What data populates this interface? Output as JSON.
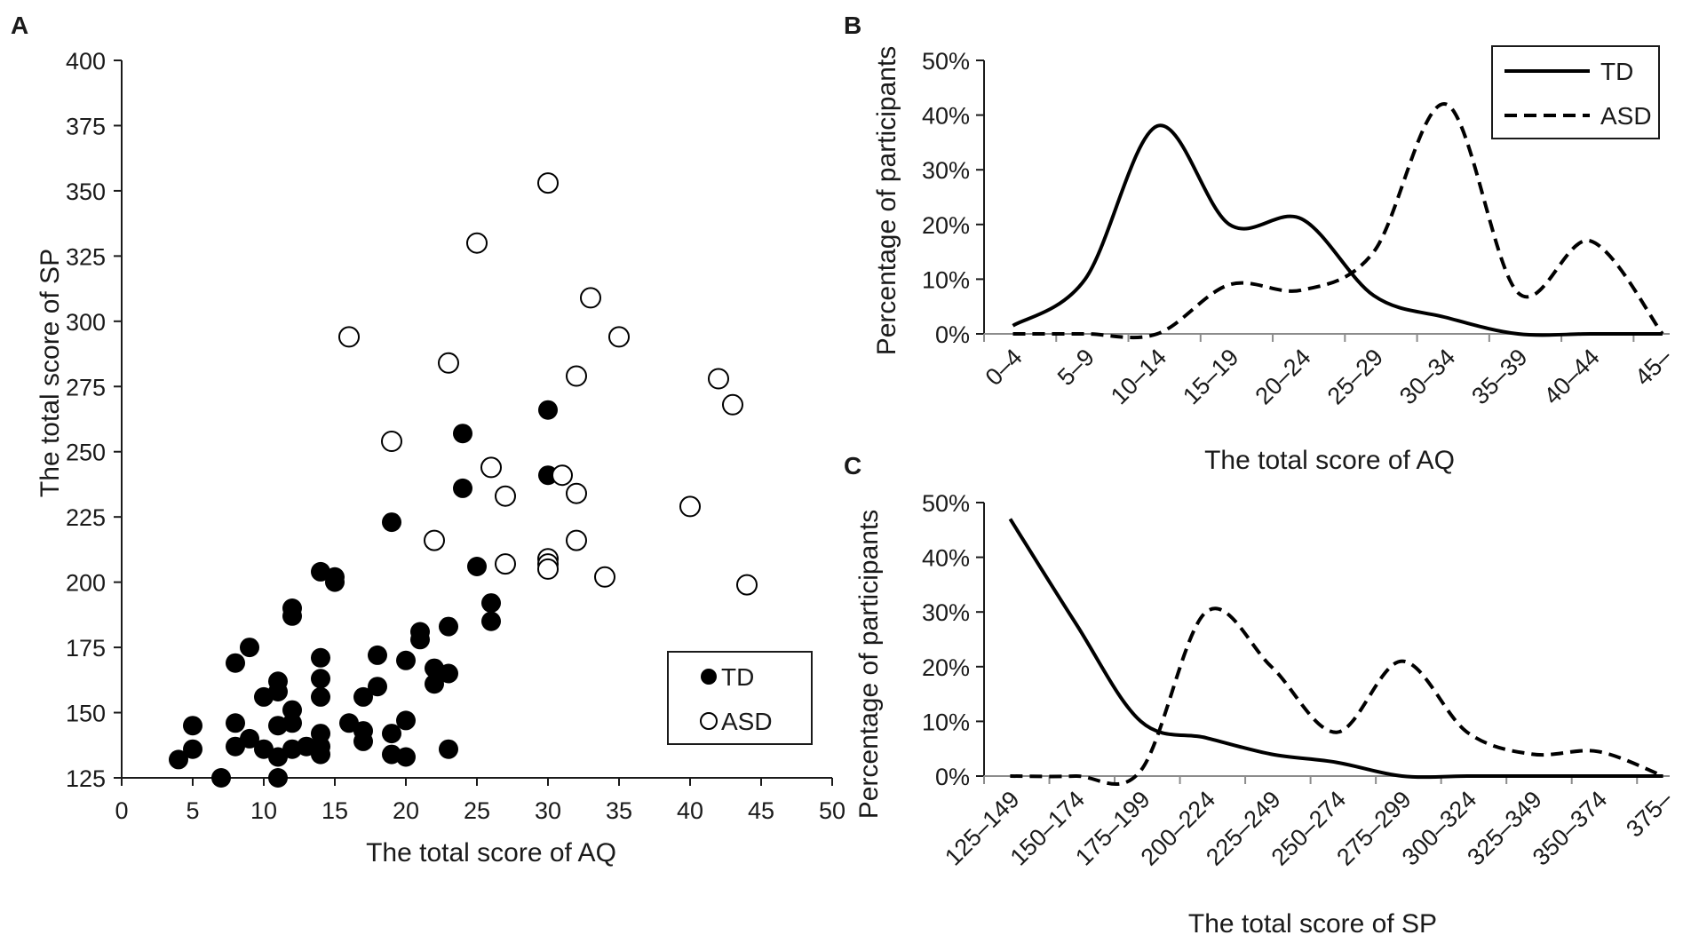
{
  "chart_data": [
    {
      "panel": "A",
      "type": "scatter",
      "title": "",
      "xlabel": "The total score of AQ",
      "ylabel": "The total score of SP",
      "xlim": [
        0,
        50
      ],
      "ylim": [
        125,
        400
      ],
      "xticks": [
        "0",
        "5",
        "10",
        "15",
        "20",
        "25",
        "30",
        "35",
        "40",
        "45",
        "50"
      ],
      "yticks": [
        "125",
        "150",
        "175",
        "200",
        "225",
        "250",
        "275",
        "300",
        "325",
        "350",
        "375",
        "400"
      ],
      "legend": {
        "position": "bottom-right",
        "entries": [
          "TD",
          "ASD"
        ]
      },
      "series": [
        {
          "name": "TD",
          "marker": "filled-circle",
          "points": [
            [
              4,
              132
            ],
            [
              5,
              136
            ],
            [
              5,
              145
            ],
            [
              7,
              125
            ],
            [
              8,
              137
            ],
            [
              8,
              146
            ],
            [
              8,
              169
            ],
            [
              9,
              175
            ],
            [
              9,
              140
            ],
            [
              10,
              136
            ],
            [
              10,
              156
            ],
            [
              11,
              145
            ],
            [
              11,
              162
            ],
            [
              11,
              158
            ],
            [
              11,
              133
            ],
            [
              11,
              125
            ],
            [
              12,
              190
            ],
            [
              12,
              187
            ],
            [
              12,
              151
            ],
            [
              12,
              146
            ],
            [
              12,
              136
            ],
            [
              13,
              137
            ],
            [
              14,
              204
            ],
            [
              14,
              171
            ],
            [
              14,
              163
            ],
            [
              14,
              156
            ],
            [
              14,
              142
            ],
            [
              14,
              137
            ],
            [
              14,
              134
            ],
            [
              15,
              202
            ],
            [
              15,
              200
            ],
            [
              16,
              146
            ],
            [
              17,
              156
            ],
            [
              17,
              143
            ],
            [
              17,
              139
            ],
            [
              18,
              172
            ],
            [
              18,
              160
            ],
            [
              19,
              223
            ],
            [
              19,
              142
            ],
            [
              19,
              134
            ],
            [
              20,
              170
            ],
            [
              20,
              147
            ],
            [
              20,
              133
            ],
            [
              21,
              181
            ],
            [
              21,
              178
            ],
            [
              22,
              167
            ],
            [
              22,
              161
            ],
            [
              23,
              183
            ],
            [
              23,
              165
            ],
            [
              23,
              136
            ],
            [
              24,
              257
            ],
            [
              24,
              236
            ],
            [
              25,
              206
            ],
            [
              26,
              192
            ],
            [
              26,
              185
            ],
            [
              30,
              266
            ],
            [
              30,
              241
            ]
          ]
        },
        {
          "name": "ASD",
          "marker": "open-circle",
          "points": [
            [
              30,
              353
            ],
            [
              25,
              330
            ],
            [
              33,
              309
            ],
            [
              16,
              294
            ],
            [
              35,
              294
            ],
            [
              23,
              284
            ],
            [
              32,
              279
            ],
            [
              42,
              278
            ],
            [
              43,
              268
            ],
            [
              19,
              254
            ],
            [
              26,
              244
            ],
            [
              31,
              241
            ],
            [
              27,
              233
            ],
            [
              32,
              234
            ],
            [
              40,
              229
            ],
            [
              22,
              216
            ],
            [
              32,
              216
            ],
            [
              27,
              207
            ],
            [
              30,
              209
            ],
            [
              30,
              207
            ],
            [
              30,
              205
            ],
            [
              34,
              202
            ],
            [
              44,
              199
            ]
          ]
        }
      ]
    },
    {
      "panel": "B",
      "type": "line",
      "title": "",
      "xlabel": "The total score of AQ",
      "ylabel": "Percentage of  participants",
      "ylim": [
        0,
        50
      ],
      "yticks": [
        "0%",
        "10%",
        "20%",
        "30%",
        "40%",
        "50%"
      ],
      "categories": [
        "0–4",
        "5–9",
        "10–14",
        "15–19",
        "20–24",
        "25–29",
        "30–34",
        "35–39",
        "40–44",
        "45–"
      ],
      "legend": {
        "position": "top-right",
        "entries": [
          "TD",
          "ASD"
        ]
      },
      "series": [
        {
          "name": "TD",
          "style": "solid",
          "values": [
            1.5,
            10,
            38,
            20,
            21,
            7,
            3,
            0,
            0,
            0
          ]
        },
        {
          "name": "ASD",
          "style": "dashed",
          "values": [
            0,
            0,
            0,
            9,
            8,
            15,
            42,
            7.5,
            17,
            0
          ]
        }
      ]
    },
    {
      "panel": "C",
      "type": "line",
      "title": "",
      "xlabel": "The total score of SP",
      "ylabel": "Percentage of participants",
      "ylim": [
        0,
        50
      ],
      "yticks": [
        "0%",
        "10%",
        "20%",
        "30%",
        "40%",
        "50%"
      ],
      "categories": [
        "125–149",
        "150–174",
        "175–199",
        "200–224",
        "225–249",
        "250–274",
        "275–299",
        "300–324",
        "325–349",
        "350–374",
        "375–"
      ],
      "series": [
        {
          "name": "TD",
          "style": "solid",
          "values": [
            47,
            28,
            10,
            7,
            4,
            2.5,
            0,
            0,
            0,
            0,
            0
          ]
        },
        {
          "name": "ASD",
          "style": "dashed",
          "values": [
            0,
            0,
            1,
            30,
            20,
            8,
            21,
            8,
            4,
            4.5,
            0
          ]
        }
      ]
    }
  ]
}
